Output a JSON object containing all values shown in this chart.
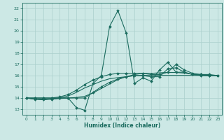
{
  "title": "",
  "xlabel": "Humidex (Indice chaleur)",
  "bg_color": "#cce8e5",
  "grid_color": "#aacfcc",
  "line_color": "#1a6b5e",
  "xlim": [
    -0.5,
    23.5
  ],
  "ylim": [
    12.5,
    22.5
  ],
  "yticks": [
    13,
    14,
    15,
    16,
    17,
    18,
    19,
    20,
    21,
    22
  ],
  "xticks": [
    0,
    1,
    2,
    3,
    4,
    5,
    6,
    7,
    8,
    9,
    10,
    11,
    12,
    13,
    14,
    15,
    16,
    17,
    18,
    19,
    20,
    21,
    22,
    23
  ],
  "lines": [
    {
      "x": [
        0,
        1,
        2,
        3,
        4,
        5,
        6,
        7,
        8,
        9,
        10,
        11,
        12,
        13,
        14,
        15,
        16,
        17,
        18,
        19,
        20,
        21,
        22
      ],
      "y": [
        14.0,
        13.9,
        13.9,
        13.9,
        14.0,
        14.0,
        13.15,
        12.9,
        15.3,
        16.0,
        20.4,
        21.8,
        19.8,
        15.3,
        15.8,
        15.5,
        16.5,
        17.2,
        16.3,
        16.3,
        16.1,
        16.0,
        16.0
      ],
      "has_markers": true
    },
    {
      "x": [
        0,
        1,
        2,
        3,
        4,
        5,
        6,
        7,
        8,
        9,
        10,
        11,
        12,
        13,
        14,
        15,
        16,
        17,
        18,
        19,
        20,
        21,
        22,
        23
      ],
      "y": [
        14.0,
        13.9,
        13.85,
        13.9,
        13.95,
        14.0,
        14.05,
        14.15,
        14.45,
        14.85,
        15.25,
        15.65,
        15.9,
        16.1,
        16.2,
        16.2,
        16.25,
        16.28,
        16.28,
        16.22,
        16.12,
        16.02,
        16.0,
        16.0
      ],
      "has_markers": false
    },
    {
      "x": [
        0,
        1,
        2,
        3,
        4,
        5,
        6,
        7,
        8,
        9,
        10,
        11,
        12,
        13,
        14,
        15,
        16,
        17,
        18,
        19,
        20,
        21,
        22,
        23
      ],
      "y": [
        14.0,
        13.9,
        13.85,
        13.95,
        14.0,
        14.18,
        14.5,
        14.9,
        15.2,
        15.5,
        15.72,
        15.82,
        15.9,
        16.0,
        16.02,
        16.02,
        16.02,
        16.02,
        16.02,
        16.02,
        16.02,
        16.02,
        16.02,
        16.02
      ],
      "has_markers": false
    },
    {
      "x": [
        0,
        1,
        2,
        3,
        4,
        5,
        6,
        7,
        8,
        9,
        10,
        11,
        12,
        13,
        14,
        15,
        16,
        17,
        18,
        19,
        20,
        21,
        22,
        23
      ],
      "y": [
        14.0,
        14.0,
        14.0,
        14.0,
        14.1,
        14.3,
        14.7,
        15.2,
        15.6,
        15.9,
        16.1,
        16.2,
        16.2,
        16.2,
        16.2,
        16.1,
        16.1,
        16.3,
        17.0,
        16.5,
        16.2,
        16.1,
        16.0,
        16.0
      ],
      "has_markers": true
    },
    {
      "x": [
        0,
        1,
        2,
        3,
        4,
        5,
        6,
        7,
        8,
        9,
        10,
        11,
        12,
        13,
        14,
        15,
        16,
        17,
        18,
        19,
        20,
        21,
        22,
        23
      ],
      "y": [
        14.0,
        14.0,
        14.0,
        14.0,
        14.0,
        14.0,
        14.0,
        14.0,
        14.5,
        15.0,
        15.4,
        15.7,
        15.9,
        16.0,
        16.0,
        15.9,
        15.9,
        16.6,
        16.7,
        16.3,
        16.1,
        16.1,
        16.1,
        16.0
      ],
      "has_markers": true
    }
  ]
}
